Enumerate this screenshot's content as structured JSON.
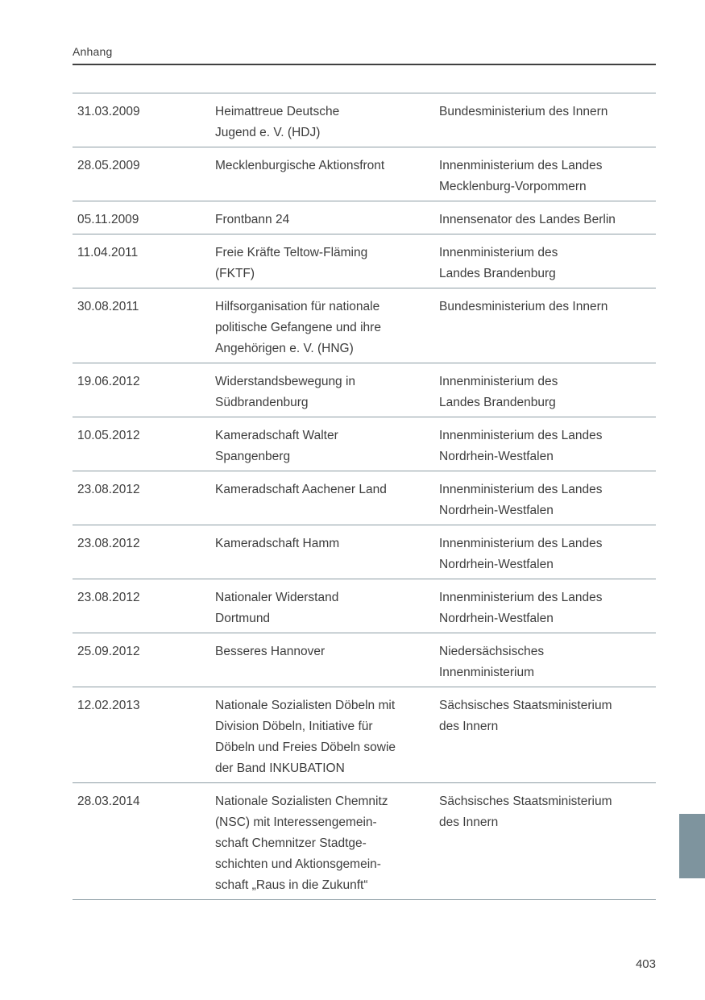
{
  "page": {
    "header": "Anhang",
    "page_number": "403",
    "colors": {
      "text": "#3d3d3d",
      "rule_light": "#8c9ca4",
      "rule_dark": "#414141",
      "chapter_tab": "#7e949e"
    }
  },
  "table": {
    "rows": [
      {
        "date": "31.03.2009",
        "organization": "Heimattreue Deutsche\nJugend e. V. (HDJ)",
        "authority": "Bundesministerium des Innern"
      },
      {
        "date": "28.05.2009",
        "organization": "Mecklenburgische Aktionsfront",
        "authority": "Innenministerium des Landes\nMecklenburg-Vorpommern"
      },
      {
        "date": "05.11.2009",
        "organization": "Frontbann 24",
        "authority": "Innensenator des Landes Berlin"
      },
      {
        "date": "11.04.2011",
        "organization": "Freie Kräfte Teltow-Fläming\n(FKTF)",
        "authority": "Innenministerium des\nLandes Brandenburg"
      },
      {
        "date": "30.08.2011",
        "organization": "Hilfsorganisation für nationale\npolitische Gefangene und ihre\nAngehörigen e. V. (HNG)",
        "authority": "Bundesministerium des Innern"
      },
      {
        "date": "19.06.2012",
        "organization": "Widerstandsbewegung in\nSüdbrandenburg",
        "authority": "Innenministerium des\nLandes Brandenburg"
      },
      {
        "date": "10.05.2012",
        "organization": "Kameradschaft Walter\nSpangenberg",
        "authority": "Innenministerium des Landes\nNordrhein-Westfalen"
      },
      {
        "date": "23.08.2012",
        "organization": "Kameradschaft Aachener Land",
        "authority": "Innenministerium des Landes\nNordrhein-Westfalen"
      },
      {
        "date": "23.08.2012",
        "organization": "Kameradschaft Hamm",
        "authority": "Innenministerium des Landes\nNordrhein-Westfalen"
      },
      {
        "date": "23.08.2012",
        "organization": "Nationaler Widerstand\nDortmund",
        "authority": "Innenministerium des Landes\nNordrhein-Westfalen"
      },
      {
        "date": "25.09.2012",
        "organization": "Besseres Hannover",
        "authority": "Niedersächsisches\nInnenministerium"
      },
      {
        "date": "12.02.2013",
        "organization": "Nationale Sozialisten Döbeln mit\nDivision Döbeln, Initiative für\nDöbeln und Freies Döbeln sowie\nder Band INKUBATION",
        "authority": "Sächsisches Staatsministerium\ndes Innern"
      },
      {
        "date": "28.03.2014",
        "organization": "Nationale Sozialisten Chemnitz\n(NSC) mit Interessengemein-\nschaft Chemnitzer Stadtge-\nschichten und Aktionsgemein-\nschaft „Raus in die Zukunft“",
        "authority": "Sächsisches Staatsministerium\ndes Innern"
      }
    ]
  }
}
